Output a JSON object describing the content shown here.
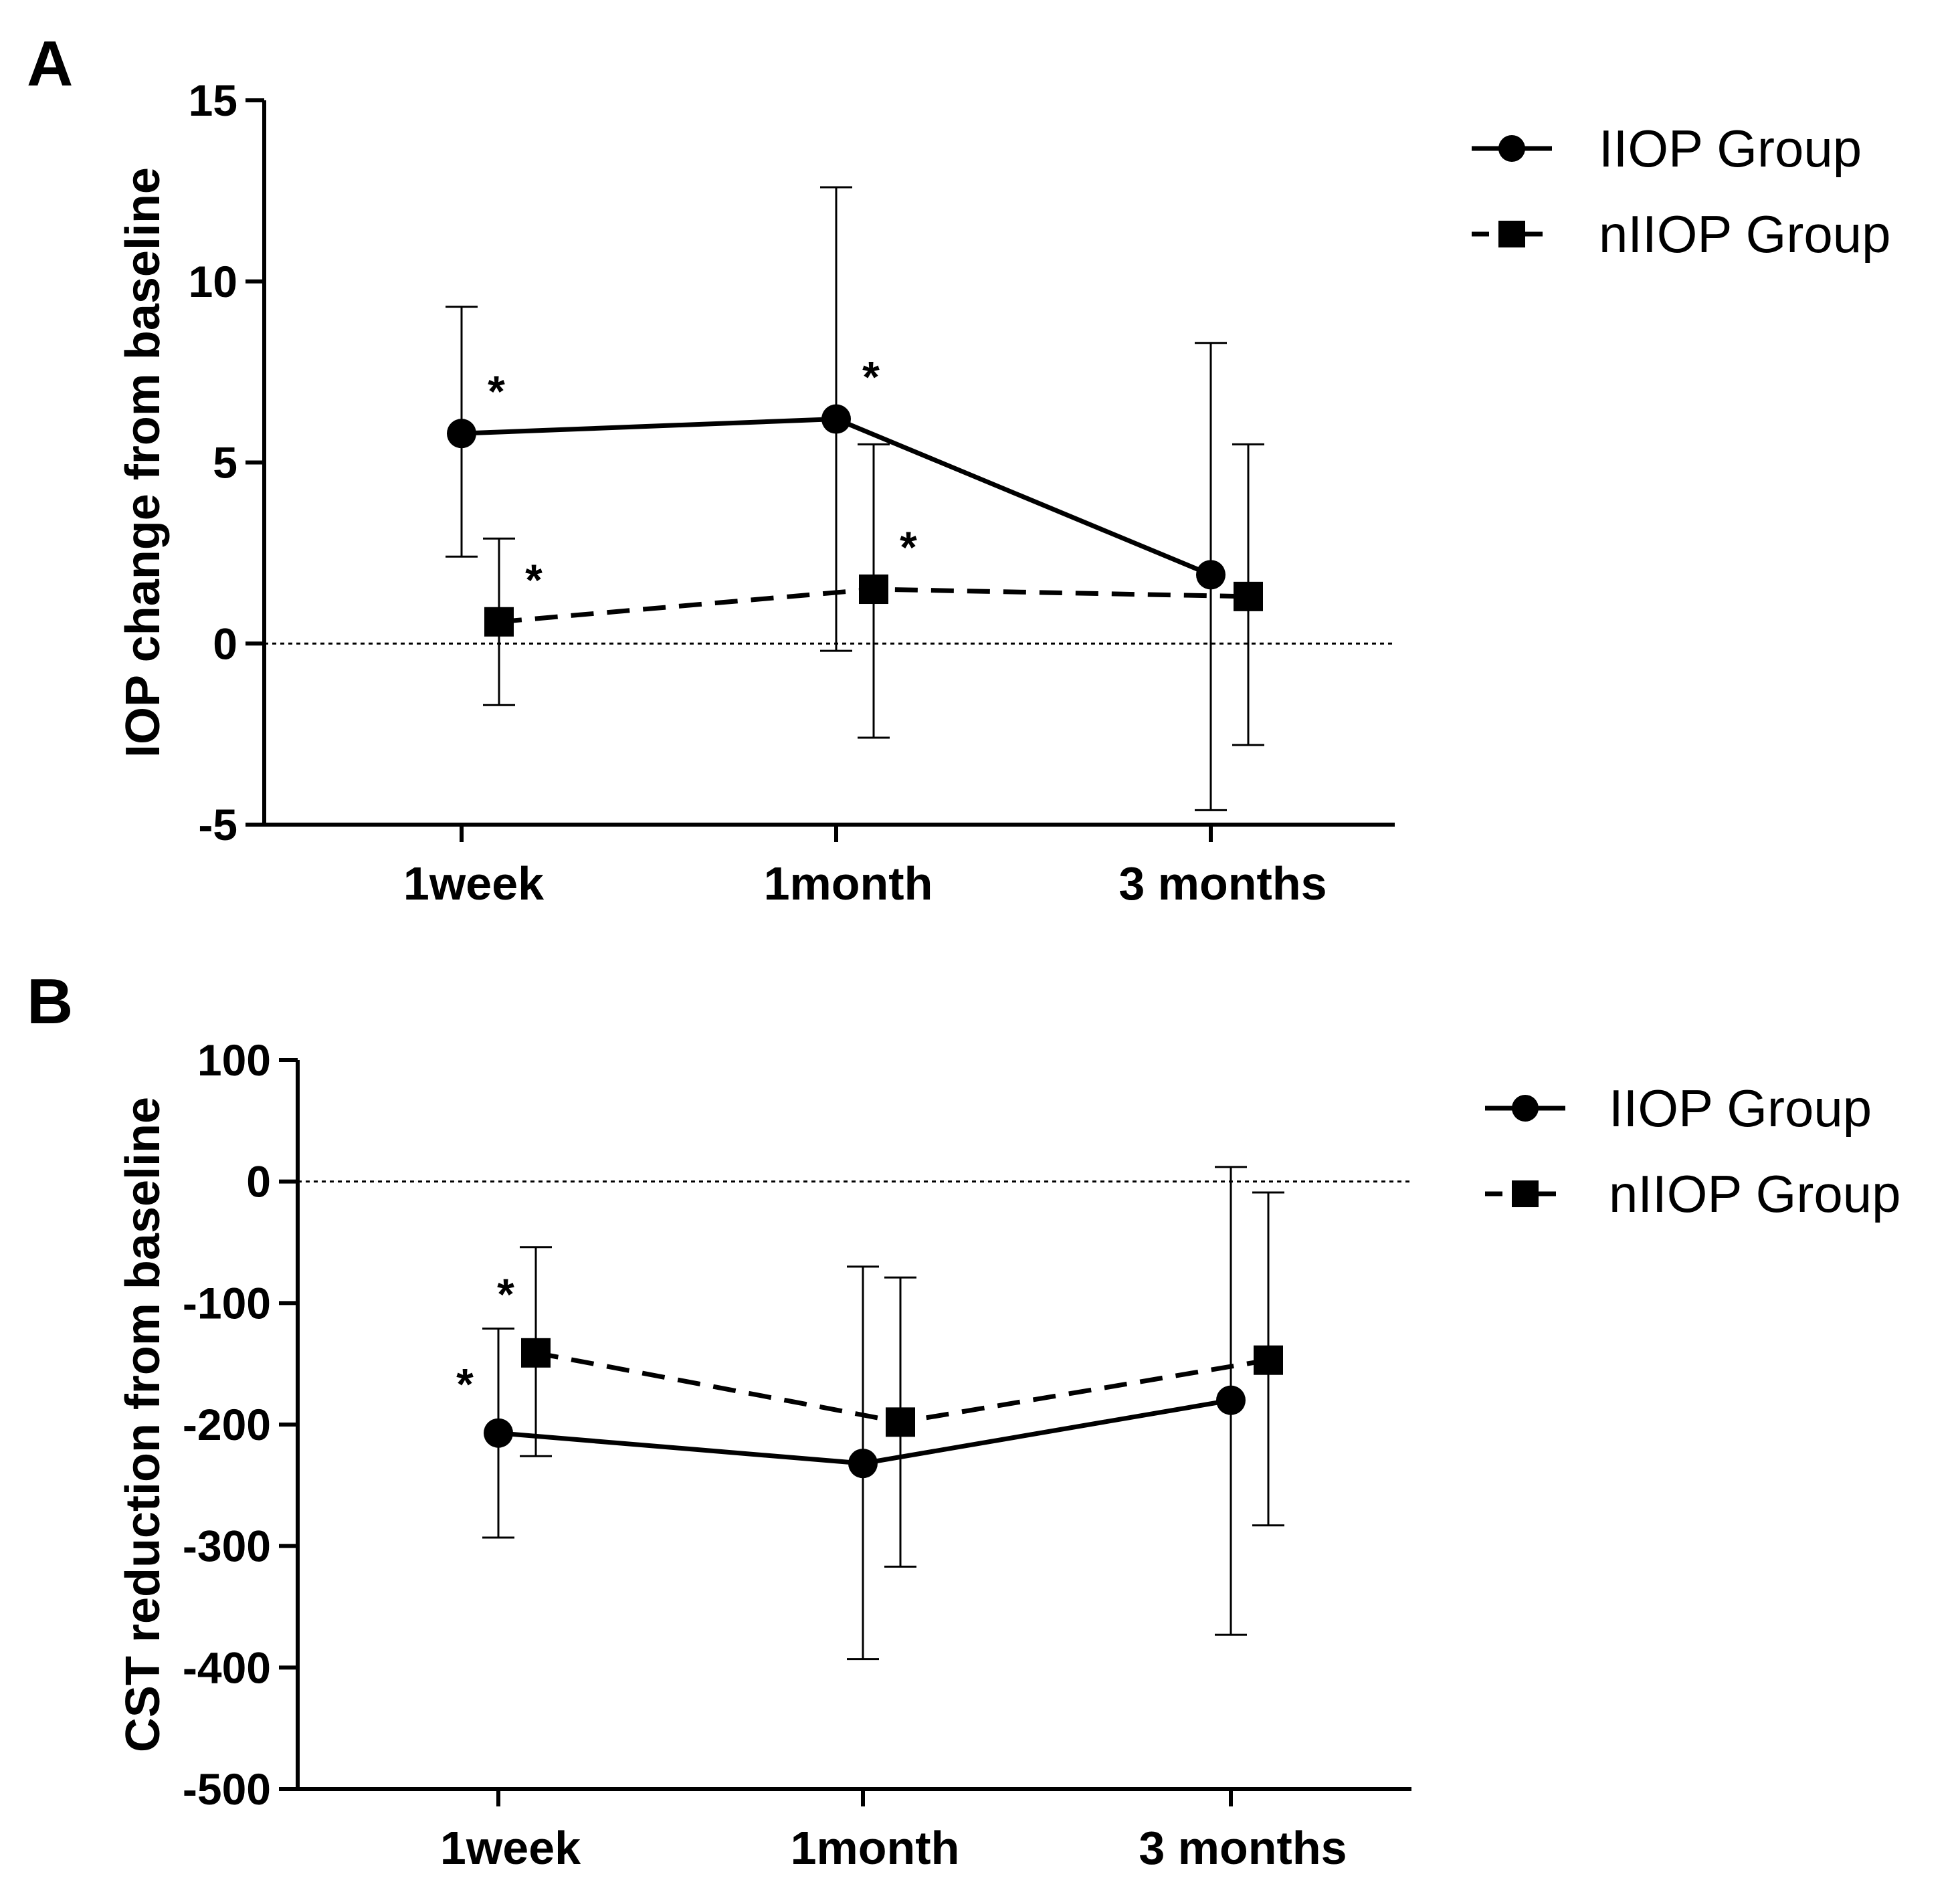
{
  "chart_data": [
    {
      "panel": "A",
      "type": "line",
      "ylabel": "IOP change from baseline",
      "xlabel": "",
      "ylim": [
        -5,
        15
      ],
      "yticks": [
        -5,
        0,
        5,
        10,
        15
      ],
      "categories": [
        "1week",
        "1month",
        "3 months"
      ],
      "reference_line": 0,
      "legend": {
        "placement": "top-right"
      },
      "series": [
        {
          "name": "IIOP Group",
          "marker": "circle",
          "line_style": "solid",
          "values": [
            5.8,
            6.2,
            1.9
          ],
          "err_upper": [
            9.3,
            12.6,
            8.3
          ],
          "err_lower": [
            2.4,
            -0.2,
            -4.6
          ],
          "significant": [
            true,
            true,
            false
          ]
        },
        {
          "name": "nIIOP Group",
          "marker": "square",
          "line_style": "dashed",
          "values": [
            0.6,
            1.5,
            1.3
          ],
          "err_upper": [
            2.9,
            5.5,
            5.5
          ],
          "err_lower": [
            -1.7,
            -2.6,
            -2.8
          ],
          "significant": [
            true,
            true,
            false
          ]
        }
      ],
      "annotation_symbol": "*"
    },
    {
      "panel": "B",
      "type": "line",
      "ylabel": "CST reduction from baseline",
      "xlabel": "",
      "ylim": [
        -500,
        100
      ],
      "yticks": [
        -500,
        -400,
        -300,
        -200,
        -100,
        0,
        100
      ],
      "categories": [
        "1week",
        "1month",
        "3 months"
      ],
      "reference_line": 0,
      "legend": {
        "placement": "top-right"
      },
      "series": [
        {
          "name": "IIOP Group",
          "marker": "circle",
          "line_style": "solid",
          "values": [
            -207,
            -232,
            -180
          ],
          "err_upper": [
            -121,
            -70,
            12
          ],
          "err_lower": [
            -293,
            -393,
            -373
          ],
          "significant": [
            true,
            false,
            false
          ]
        },
        {
          "name": "nIIOP Group",
          "marker": "square",
          "line_style": "dashed",
          "values": [
            -141,
            -198,
            -147
          ],
          "err_upper": [
            -54,
            -79,
            -9
          ],
          "err_lower": [
            -226,
            -317,
            -283
          ],
          "significant": [
            true,
            false,
            false
          ]
        }
      ],
      "annotation_symbol": "*"
    }
  ]
}
